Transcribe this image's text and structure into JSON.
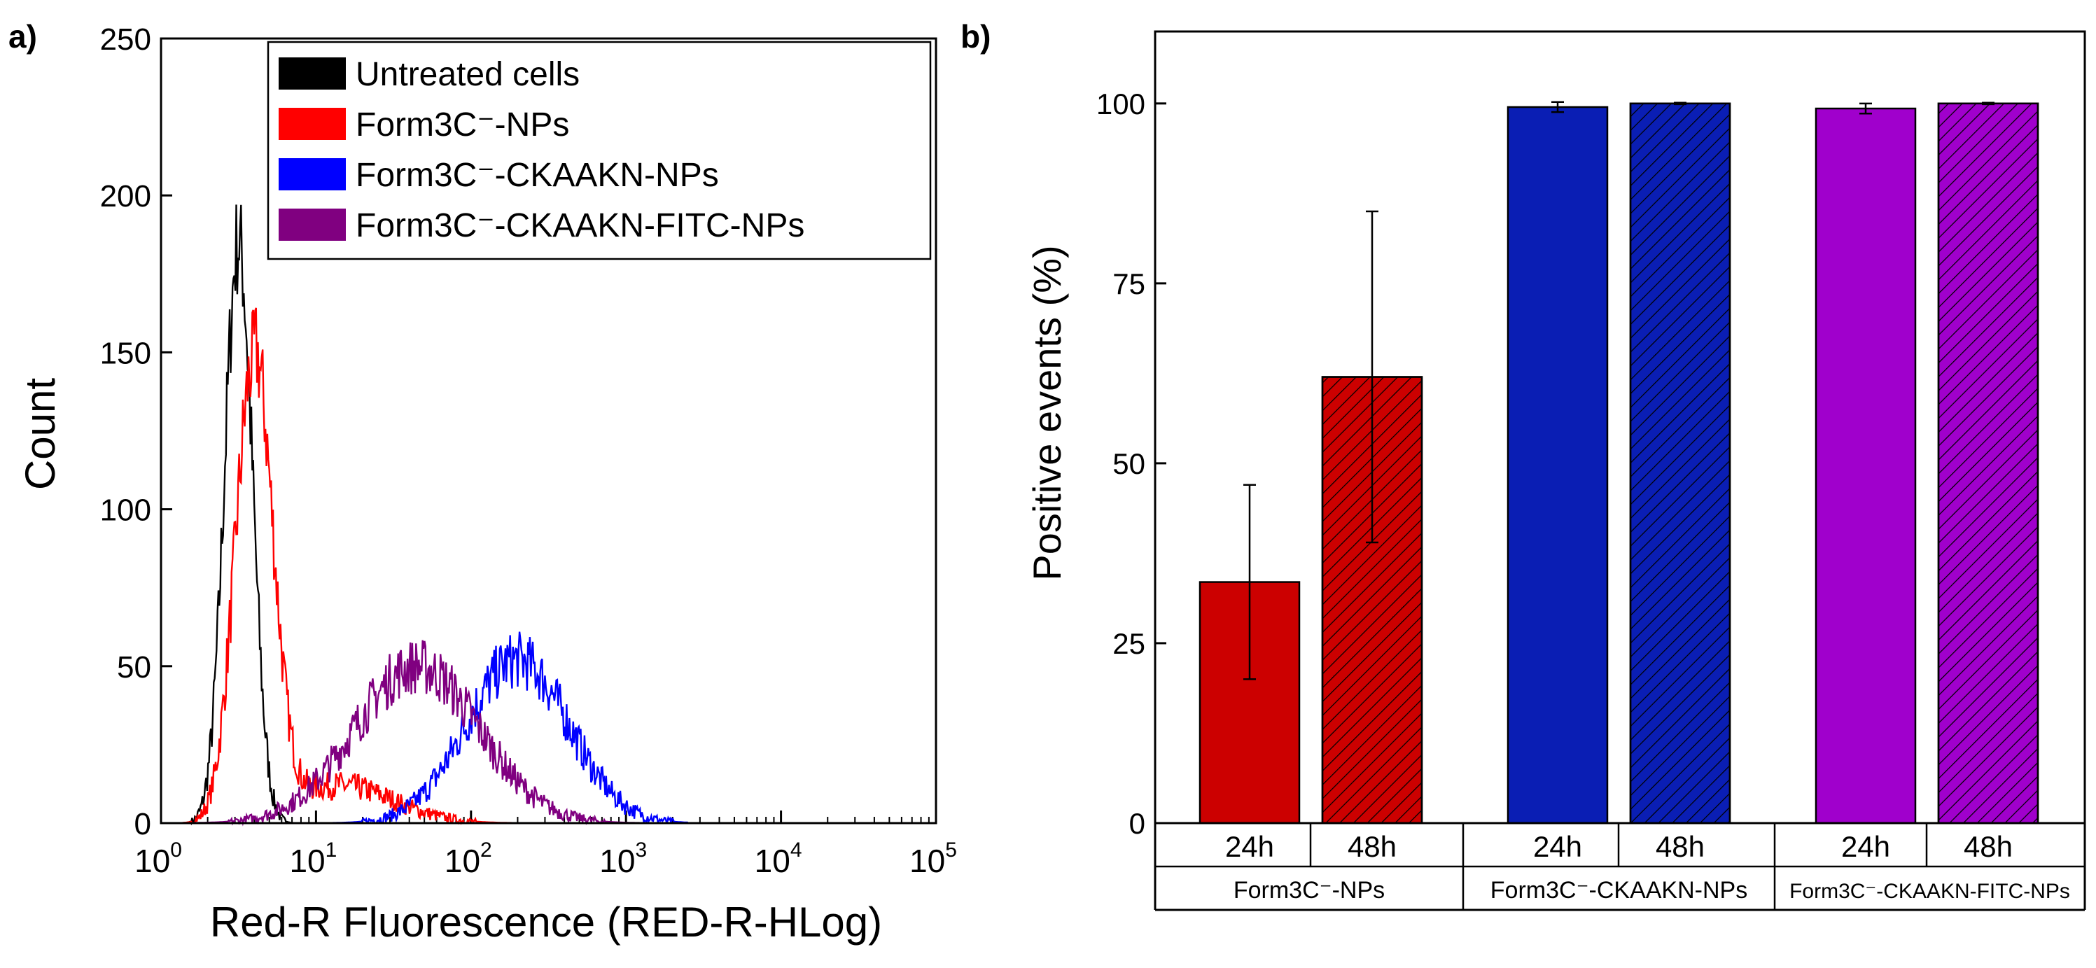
{
  "panel_labels": {
    "a": "a)",
    "b": "b)"
  },
  "colors": {
    "untreated": "#000000",
    "form3c": "#ff0000",
    "ckaakn": "#0000ff",
    "fitc": "#800080",
    "bar_red": "#cc0000",
    "bar_blue": "#0a1eb4",
    "bar_purple": "#a000cc"
  },
  "chart_data": [
    {
      "type": "line",
      "title": "",
      "xlabel": "Red-R Fluorescence (RED-R-HLog)",
      "ylabel": "Count",
      "xscale": "log",
      "xlim": [
        1,
        100000
      ],
      "ylim": [
        0,
        250
      ],
      "xticks": [
        {
          "base": "10",
          "exp": "0"
        },
        {
          "base": "10",
          "exp": "1"
        },
        {
          "base": "10",
          "exp": "2"
        },
        {
          "base": "10",
          "exp": "3"
        },
        {
          "base": "10",
          "exp": "4"
        },
        {
          "base": "10",
          "exp": "5"
        }
      ],
      "yticks": [
        "0",
        "50",
        "100",
        "150",
        "200",
        "250"
      ],
      "legend_position": "top-right",
      "series": [
        {
          "name": "Untreated cells",
          "color": "#000000",
          "center_decade": 0.5,
          "sigma": 0.09,
          "peak": 185,
          "tail": 0
        },
        {
          "name": "Form3C⁻-NPs",
          "color": "#ff0000",
          "center_decade": 0.6,
          "sigma": 0.12,
          "peak": 148,
          "tail": 12
        },
        {
          "name": "Form3C⁻-CKAAKN-NPs",
          "color": "#0000ff",
          "center_decade": 2.3,
          "sigma": 0.33,
          "peak": 52,
          "tail": 0
        },
        {
          "name": "Form3C⁻-CKAAKN-FITC-NPs",
          "color": "#800080",
          "center_decade": 1.65,
          "sigma": 0.4,
          "peak": 50,
          "tail": 0
        }
      ]
    },
    {
      "type": "bar",
      "title": "",
      "xlabel": "",
      "ylabel": "Positive events (%)",
      "ylim": [
        0,
        110
      ],
      "yticks": [
        "0",
        "25",
        "50",
        "75",
        "100"
      ],
      "categories": [
        "24h",
        "48h",
        "24h",
        "48h",
        "24h",
        "48h"
      ],
      "groups": [
        "Form3C⁻-NPs",
        "Form3C⁻-CKAAKN-NPs",
        "Form3C⁻-CKAAKN-FITC-NPs"
      ],
      "bars": [
        {
          "group": 0,
          "time": "24h",
          "value": 33.5,
          "err_low": 20,
          "err_high": 47,
          "color": "#cc0000",
          "hatched": false
        },
        {
          "group": 0,
          "time": "48h",
          "value": 62,
          "err_low": 39,
          "err_high": 85,
          "color": "#cc0000",
          "hatched": true
        },
        {
          "group": 1,
          "time": "24h",
          "value": 99.5,
          "err_low": 98.8,
          "err_high": 100.2,
          "color": "#0a1eb4",
          "hatched": false
        },
        {
          "group": 1,
          "time": "48h",
          "value": 100,
          "err_low": 99.9,
          "err_high": 100.1,
          "color": "#0a1eb4",
          "hatched": true
        },
        {
          "group": 2,
          "time": "24h",
          "value": 99.3,
          "err_low": 98.6,
          "err_high": 100,
          "color": "#a000cc",
          "hatched": false
        },
        {
          "group": 2,
          "time": "48h",
          "value": 100,
          "err_low": 99.9,
          "err_high": 100.1,
          "color": "#a000cc",
          "hatched": true
        }
      ]
    }
  ]
}
